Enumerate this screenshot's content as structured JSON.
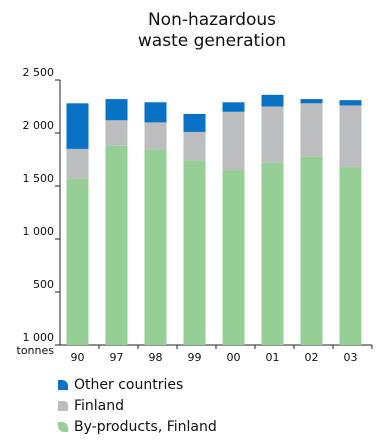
{
  "title_lines": [
    "Non-hazardous",
    "waste generation"
  ],
  "colors": {
    "other_countries": "#0a72c4",
    "finland": "#bcbdbf",
    "byproducts": "#96cf95",
    "axis": "#222222"
  },
  "chart_data": {
    "type": "bar",
    "stacked": true,
    "categories": [
      "90",
      "97",
      "98",
      "99",
      "00",
      "01",
      "02",
      "03"
    ],
    "y_tick_labels": [
      "1 000\ntonnes",
      "500",
      "1 000",
      "1 500",
      "2 000",
      "2 500"
    ],
    "y_tick_values": [
      0,
      500,
      1000,
      1500,
      2000,
      2500
    ],
    "ylim": [
      0,
      2500
    ],
    "grid": false,
    "legend_position": "bottom",
    "series": [
      {
        "name": "By-products, Finland",
        "key": "byproducts",
        "values": [
          1570,
          1880,
          1840,
          1740,
          1650,
          1720,
          1780,
          1680
        ]
      },
      {
        "name": "Finland",
        "key": "finland",
        "values": [
          280,
          240,
          260,
          270,
          550,
          530,
          500,
          580
        ]
      },
      {
        "name": "Other countries",
        "key": "other_countries",
        "values": [
          430,
          200,
          190,
          170,
          90,
          110,
          40,
          50
        ]
      }
    ]
  },
  "legend": [
    {
      "label": "Other countries",
      "key": "other"
    },
    {
      "label": "Finland",
      "key": "finland"
    },
    {
      "label": "By-products, Finland",
      "key": "byprod"
    }
  ]
}
